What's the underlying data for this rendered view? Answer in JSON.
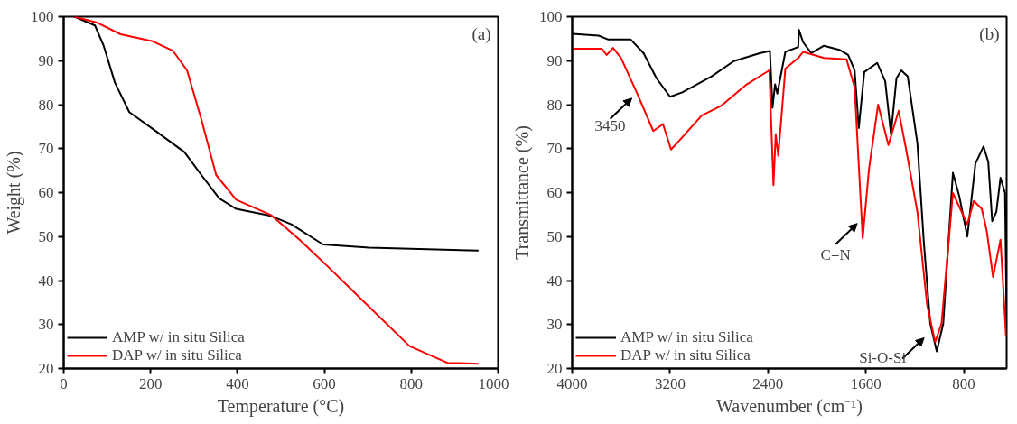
{
  "chart_data": [
    {
      "type": "line",
      "xlabel": "Temperature (°C)",
      "ylabel": "Weight (%)",
      "xlim": [
        0,
        1000
      ],
      "ylim": [
        20,
        100
      ],
      "xticks": [
        0,
        200,
        400,
        600,
        800,
        1000
      ],
      "yticks": [
        20,
        30,
        40,
        50,
        60,
        70,
        80,
        90,
        100
      ],
      "legend": "bottom left",
      "grid": false,
      "annotations": [
        "(a)"
      ],
      "series": [
        {
          "name": "AMP w/ in situ Silica",
          "color": "#000000",
          "x": [
            25,
            72,
            92,
            118,
            151,
            205,
            278,
            317,
            358,
            397,
            477,
            524,
            597,
            703,
            955
          ],
          "values": [
            100,
            98,
            93.4,
            85,
            78.3,
            74.5,
            69.2,
            64,
            58.7,
            56.3,
            54.7,
            52.8,
            48.2,
            47.5,
            46.8
          ]
        },
        {
          "name": "DAP w/ in situ Silica",
          "color": "#ff0000",
          "x": [
            25,
            78,
            131,
            205,
            251,
            284,
            317,
            351,
            397,
            477,
            543,
            610,
            690,
            796,
            883,
            955
          ],
          "values": [
            100,
            98.6,
            96,
            94.4,
            92.3,
            87.8,
            76.6,
            64,
            58.4,
            54.9,
            49.3,
            43,
            35.3,
            25.1,
            21.3,
            21.1
          ]
        }
      ]
    },
    {
      "type": "line",
      "xlabel": "Wavenumber (cm⁻¹)",
      "ylabel": "Transmittance (%)",
      "xlim": [
        4000,
        450
      ],
      "ylim": [
        20,
        100
      ],
      "xticks": [
        4000,
        3200,
        2400,
        1600,
        800
      ],
      "yticks": [
        20,
        30,
        40,
        50,
        60,
        70,
        80,
        90,
        100
      ],
      "legend": "bottom left",
      "grid": false,
      "annotations": [
        "(b)",
        {
          "text": "3450",
          "x": 3468,
          "y": 82.5
        },
        {
          "text": "C=N",
          "x": 1626,
          "y": 54
        },
        {
          "text": "Si-O-Si",
          "x": 1080,
          "y": 28
        }
      ],
      "series": [
        {
          "name": "AMP w/ in situ Silica",
          "color": "#000000",
          "x": [
            4000,
            3784,
            3705,
            3521,
            3416,
            3311,
            3200,
            3100,
            2863,
            2679,
            2468,
            2384,
            2363,
            2342,
            2324,
            2258,
            2153,
            2147,
            2113,
            2047,
            1942,
            1810,
            1745,
            1692,
            1658,
            1613,
            1508,
            1442,
            1395,
            1350,
            1311,
            1258,
            1179,
            1126,
            1074,
            1021,
            968,
            889,
            837,
            771,
            705,
            639,
            600,
            568,
            534,
            500,
            463,
            450
          ],
          "values": [
            96.1,
            95.7,
            94.8,
            94.8,
            91.7,
            86,
            81.8,
            82.8,
            86.4,
            89.9,
            91.7,
            92.2,
            79.3,
            84.6,
            82.5,
            92,
            93.1,
            97,
            94.2,
            91.7,
            93.4,
            92.4,
            91.3,
            87.8,
            74.7,
            87.4,
            89.5,
            85.3,
            73.3,
            86,
            87.8,
            86.4,
            71.2,
            48.6,
            30.2,
            23.9,
            30.2,
            64.5,
            59.2,
            50,
            66.6,
            70.5,
            67,
            53.5,
            55.6,
            63.4,
            59.9,
            30
          ]
        },
        {
          "name": "DAP w/ in situ Silica",
          "color": "#ff0000",
          "x": [
            4000,
            3758,
            3718,
            3666,
            3600,
            3468,
            3337,
            3258,
            3192,
            3100,
            2942,
            2784,
            2574,
            2389,
            2355,
            2337,
            2316,
            2258,
            2153,
            2113,
            1942,
            1758,
            1692,
            1626,
            1574,
            1500,
            1416,
            1332,
            1271,
            1179,
            1100,
            1034,
            982,
            889,
            771,
            718,
            653,
            613,
            561,
            500,
            455
          ],
          "values": [
            92.7,
            92.7,
            91.3,
            92.9,
            90.6,
            82.5,
            74,
            75.6,
            69.8,
            72.6,
            77.5,
            79.7,
            84.6,
            87.8,
            61.7,
            73.3,
            68.4,
            88.2,
            90.6,
            92,
            90.6,
            90.3,
            83.9,
            49.6,
            65.5,
            80,
            70.8,
            78.6,
            69.8,
            55.6,
            34.5,
            26,
            30.2,
            59.9,
            52.8,
            58.1,
            56.3,
            51.4,
            40.8,
            49.3,
            27.4
          ]
        }
      ]
    }
  ]
}
